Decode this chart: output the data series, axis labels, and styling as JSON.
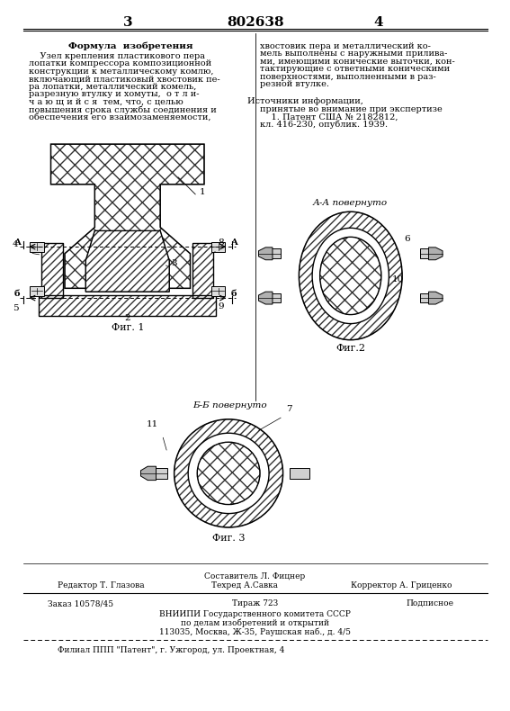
{
  "bg_color": "#ffffff",
  "page_width": 7.07,
  "page_height": 10.0,
  "top_page_num_left": "3",
  "top_center_title": "802638",
  "top_page_num_right": "4",
  "formula_header": "Формула  изобретения",
  "formula_text_left": [
    "    Узел крепления пластикового пера",
    "лопатки компрессора композиционной",
    "конструкции к металлическому комлю,",
    "включающий пластиковый хвостовик пе-",
    "ра лопатки, металлический комель,",
    "разрезную втулку и хомуты,  о т л и-",
    "ч а ю щ и й с я  тем, что, с целью",
    "повышения срока службы соединения и",
    "обеспечения его взаимозаменяемости,"
  ],
  "formula_text_right": [
    "хвостовик пера и металлический ко-",
    "мель выполнены с наружными прилива-",
    "ми, имеющими конические выточки, кон-",
    "тактирующие с ответными коническими",
    "поверхностями, выполненными в раз-",
    "резной втулке."
  ],
  "sources_header": "Источники информации,",
  "sources_text": [
    "принятые во внимание при экспертизе",
    "    1. Патент США № 2182812,",
    "кл. 416-230, опублик. 1939."
  ],
  "fig1_label": "Фиг. 1",
  "fig2_label": "Фиг.2",
  "fig3_label": "Фиг. 3",
  "section_aa": "А-А повернуто",
  "section_bb": "Б-Б повернуто",
  "bottom_compiler": "Составитель Л. Фицнер",
  "bottom_editor": "Редактор Т. Глазова",
  "bottom_tech": "Техред А.Савка",
  "bottom_corrector": "Корректор А. Гриценко",
  "bottom_order": "Заказ 10578/45",
  "bottom_tirazh": "Тираж 723",
  "bottom_podpisnoe": "Подписное",
  "bottom_vniip": "ВНИИПИ Государственного комитета СССР",
  "bottom_dela": "по делам изобретений и открытий",
  "bottom_address": "113035, Москва, Ж-35, Раушская наб., д. 4/5",
  "bottom_filial": "Филиал ППП \"Патент\", г. Ужгород, ул. Проектная, 4",
  "line_color": "#000000",
  "text_color": "#000000"
}
